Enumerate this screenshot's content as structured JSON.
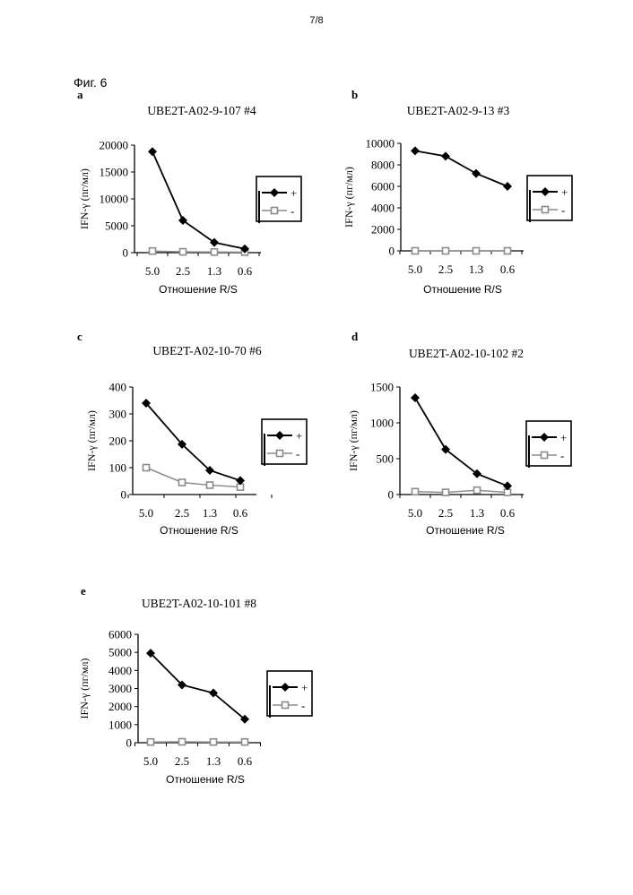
{
  "page": {
    "number": "7/8",
    "figure": "Фиг. 6"
  },
  "colors": {
    "plus": "#000000",
    "minus": "#8c8c8c"
  },
  "chart_data": [
    {
      "panel": "a",
      "type": "line",
      "title": "UBE2T-A02-9-107 #4",
      "xlabel": "Отношение R/S",
      "ylabel": "IFN-γ (пг/мл)",
      "categories": [
        "5.0",
        "2.5",
        "1.3",
        "0.6"
      ],
      "ylim": [
        0,
        20000
      ],
      "yticks": [
        0,
        5000,
        10000,
        15000,
        20000
      ],
      "series": [
        {
          "name": "+",
          "values": [
            18800,
            6000,
            1900,
            700
          ]
        },
        {
          "name": "-",
          "values": [
            300,
            150,
            120,
            100
          ]
        }
      ]
    },
    {
      "panel": "b",
      "type": "line",
      "title": "UBE2T-A02-9-13 #3",
      "xlabel": "Отношение R/S",
      "ylabel": "IFN-γ (пг/мл)",
      "categories": [
        "5.0",
        "2.5",
        "1.3",
        "0.6"
      ],
      "ylim": [
        0,
        10000
      ],
      "yticks": [
        0,
        2000,
        4000,
        6000,
        8000,
        10000
      ],
      "series": [
        {
          "name": "+",
          "values": [
            9300,
            8800,
            7200,
            6000
          ]
        },
        {
          "name": "-",
          "values": [
            0,
            0,
            0,
            0
          ]
        }
      ]
    },
    {
      "panel": "c",
      "type": "line",
      "title": "UBE2T-A02-10-70 #6",
      "xlabel": "Отношение R/S",
      "ylabel": "IFN-γ (пг/мл)",
      "categories": [
        "5.0",
        "2.5",
        "1.3",
        "0.6"
      ],
      "ylim": [
        0,
        400
      ],
      "yticks": [
        0,
        100,
        200,
        300,
        400
      ],
      "series": [
        {
          "name": "+",
          "values": [
            340,
            187,
            90,
            52
          ]
        },
        {
          "name": "-",
          "values": [
            100,
            45,
            35,
            28
          ]
        }
      ]
    },
    {
      "panel": "d",
      "type": "line",
      "title": "UBE2T-A02-10-102 #2",
      "xlabel": "Отношение R/S",
      "ylabel": "IFN-γ (пг/мл)",
      "categories": [
        "5.0",
        "2.5",
        "1.3",
        "0.6"
      ],
      "ylim": [
        0,
        1500
      ],
      "yticks": [
        0,
        500,
        1000,
        1500
      ],
      "series": [
        {
          "name": "+",
          "values": [
            1350,
            630,
            290,
            120
          ]
        },
        {
          "name": "-",
          "values": [
            40,
            30,
            60,
            30
          ]
        }
      ]
    },
    {
      "panel": "e",
      "type": "line",
      "title": "UBE2T-A02-10-101 #8",
      "xlabel": "Отношение R/S",
      "ylabel": "IFN-γ (пг/мл)",
      "categories": [
        "5.0",
        "2.5",
        "1.3",
        "0.6"
      ],
      "ylim": [
        0,
        6000
      ],
      "yticks": [
        0,
        1000,
        2000,
        3000,
        4000,
        5000,
        6000
      ],
      "series": [
        {
          "name": "+",
          "values": [
            4950,
            3200,
            2750,
            1300
          ]
        },
        {
          "name": "-",
          "values": [
            40,
            50,
            40,
            40
          ]
        }
      ]
    }
  ]
}
